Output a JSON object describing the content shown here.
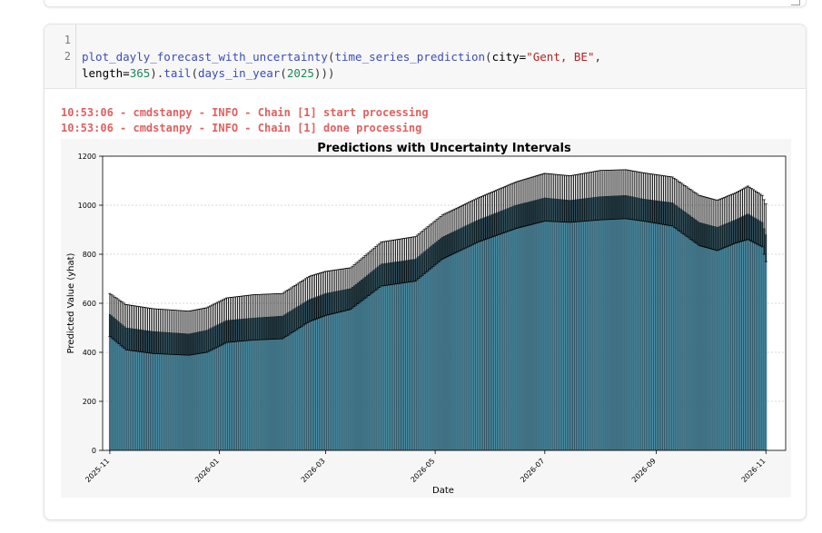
{
  "code": {
    "line_numbers": [
      "1",
      "2"
    ],
    "line2": {
      "func": "plot_dayly_forecast_with_uncertainty",
      "p1": "(",
      "inner_func": "time_series_prediction",
      "p2": "(",
      "kw_city": "city=",
      "city_value": "\"Gent, BE\"",
      "comma": ","
    },
    "line3": {
      "kw_length": "length=",
      "length_value": "365",
      "p3": ").",
      "tail": "tail",
      "p4": "(",
      "days_func": "days_in_year",
      "p5": "(",
      "year_value": "2025",
      "p6": ")))"
    }
  },
  "output": {
    "log_lines": [
      "10:53:06 - cmdstanpy - INFO - Chain [1] start processing",
      "10:53:06 - cmdstanpy - INFO - Chain [1] done processing"
    ]
  },
  "chart_data": {
    "type": "bar",
    "title": "Predictions with Uncertainty Intervals",
    "xlabel": "Date",
    "ylabel": "Predicted Value (yhat)",
    "ylim": [
      0,
      1200
    ],
    "yticks": [
      0,
      200,
      400,
      600,
      800,
      1000,
      1200
    ],
    "xlim": [
      "2025-10-28",
      "2026-11-12"
    ],
    "xticks": [
      "2025-11",
      "2026-01",
      "2026-03",
      "2026-05",
      "2026-07",
      "2026-09",
      "2026-11"
    ],
    "grid": true,
    "error_bars": true,
    "bar_color": "#4a90a8",
    "daily_start": "2025-11-01",
    "keyframes": [
      {
        "date": "2025-11-01",
        "yhat": 555,
        "lower": 465,
        "upper": 640
      },
      {
        "date": "2025-11-10",
        "yhat": 500,
        "lower": 410,
        "upper": 595
      },
      {
        "date": "2025-11-25",
        "yhat": 485,
        "lower": 395,
        "upper": 578
      },
      {
        "date": "2025-12-15",
        "yhat": 475,
        "lower": 388,
        "upper": 568
      },
      {
        "date": "2025-12-25",
        "yhat": 490,
        "lower": 400,
        "upper": 582
      },
      {
        "date": "2026-01-05",
        "yhat": 530,
        "lower": 440,
        "upper": 622
      },
      {
        "date": "2026-01-20",
        "yhat": 540,
        "lower": 450,
        "upper": 635
      },
      {
        "date": "2026-02-05",
        "yhat": 548,
        "lower": 455,
        "upper": 640
      },
      {
        "date": "2026-02-20",
        "yhat": 615,
        "lower": 525,
        "upper": 710
      },
      {
        "date": "2026-03-01",
        "yhat": 640,
        "lower": 550,
        "upper": 730
      },
      {
        "date": "2026-03-15",
        "yhat": 660,
        "lower": 575,
        "upper": 745
      },
      {
        "date": "2026-04-01",
        "yhat": 760,
        "lower": 670,
        "upper": 850
      },
      {
        "date": "2026-04-20",
        "yhat": 780,
        "lower": 690,
        "upper": 872
      },
      {
        "date": "2026-05-05",
        "yhat": 870,
        "lower": 780,
        "upper": 960
      },
      {
        "date": "2026-05-25",
        "yhat": 940,
        "lower": 850,
        "upper": 1030
      },
      {
        "date": "2026-06-15",
        "yhat": 1000,
        "lower": 905,
        "upper": 1095
      },
      {
        "date": "2026-07-01",
        "yhat": 1030,
        "lower": 935,
        "upper": 1130
      },
      {
        "date": "2026-07-15",
        "yhat": 1020,
        "lower": 930,
        "upper": 1120
      },
      {
        "date": "2026-08-01",
        "yhat": 1035,
        "lower": 940,
        "upper": 1142
      },
      {
        "date": "2026-08-15",
        "yhat": 1040,
        "lower": 945,
        "upper": 1145
      },
      {
        "date": "2026-08-25",
        "yhat": 1025,
        "lower": 935,
        "upper": 1132
      },
      {
        "date": "2026-09-10",
        "yhat": 1010,
        "lower": 915,
        "upper": 1115
      },
      {
        "date": "2026-09-25",
        "yhat": 930,
        "lower": 835,
        "upper": 1040
      },
      {
        "date": "2026-10-05",
        "yhat": 910,
        "lower": 815,
        "upper": 1020
      },
      {
        "date": "2026-10-15",
        "yhat": 940,
        "lower": 845,
        "upper": 1050
      },
      {
        "date": "2026-10-22",
        "yhat": 965,
        "lower": 860,
        "upper": 1078
      },
      {
        "date": "2026-10-30",
        "yhat": 930,
        "lower": 830,
        "upper": 1040
      },
      {
        "date": "2026-11-01",
        "yhat": 880,
        "lower": 770,
        "upper": 1005
      }
    ]
  }
}
